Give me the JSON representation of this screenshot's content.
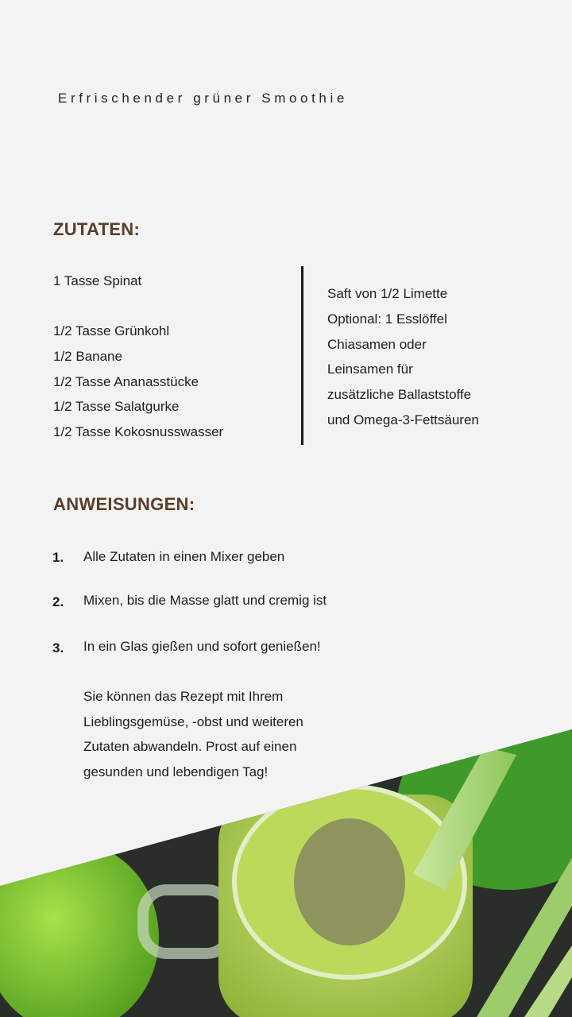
{
  "title": "Erfrischender grüner Smoothie",
  "ingredients": {
    "heading": "ZUTATEN:",
    "left": [
      "1 Tasse Spinat",
      "1/2 Tasse Grünkohl",
      "1/2 Banane",
      "1/2 Tasse Ananasstücke",
      "1/2 Tasse Salatgurke",
      "1/2 Tasse Kokosnusswasser"
    ],
    "right": [
      "Saft von 1/2 Limette",
      "Optional: 1 Esslöffel",
      "Chiasamen oder",
      "Leinsamen für",
      "zusätzliche Ballaststoffe",
      "und Omega-3-Fettsäuren"
    ]
  },
  "instructions": {
    "heading": "ANWEISUNGEN:",
    "steps": [
      {
        "num": "1.",
        "text": "Alle Zutaten in einen Mixer geben"
      },
      {
        "num": "2.",
        "text": "Mixen, bis die Masse glatt und cremig ist"
      },
      {
        "num": "3.",
        "text": "In ein Glas gießen und sofort genießen!"
      }
    ],
    "note": [
      "Sie können das Rezept mit Ihrem",
      "Lieblingsgemüse, -obst und weiteren",
      "Zutaten abwandeln. Prost auf einen",
      "gesunden und lebendigen Tag!"
    ]
  },
  "colors": {
    "background": "#f4f3f4",
    "heading": "#5a3e28"
  },
  "image": "green smoothie in glass jar with chia seeds, celery and green apple"
}
